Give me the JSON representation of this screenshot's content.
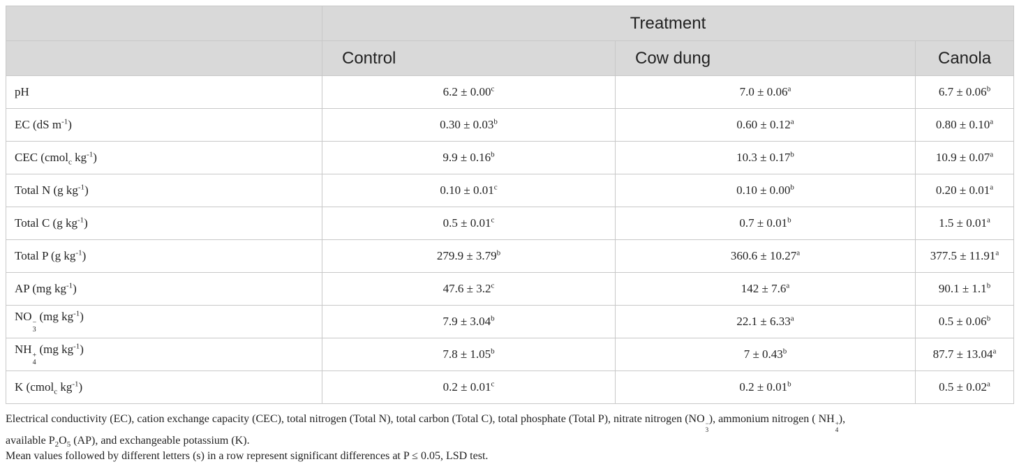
{
  "table": {
    "header": {
      "treatment": "Treatment",
      "control": "Control",
      "cowdung": "Cow dung",
      "canola": "Canola"
    },
    "rows": [
      {
        "label": "pH",
        "v": [
          {
            "val": "6.2 ± 0.00",
            "sig": "c"
          },
          {
            "val": "7.0 ± 0.06",
            "sig": "a"
          },
          {
            "val": "6.7 ± 0.06",
            "sig": "b"
          }
        ]
      },
      {
        "label_pre": "EC (",
        "label_unit": "dS m",
        "label_exp": "-1",
        "label_post": ")",
        "v": [
          {
            "val": "0.30 ± 0.03",
            "sig": "b"
          },
          {
            "val": "0.60 ± 0.12",
            "sig": "a"
          },
          {
            "val": "0.80 ± 0.10",
            "sig": "a"
          }
        ]
      },
      {
        "label_pre": "CEC (cmol",
        "label_sub": "c",
        "label_unit": " kg",
        "label_exp": "-1",
        "label_post": ")",
        "v": [
          {
            "val": "9.9 ± 0.16",
            "sig": "b"
          },
          {
            "val": "10.3 ± 0.17",
            "sig": "b"
          },
          {
            "val": "10.9 ± 0.07",
            "sig": "a"
          }
        ]
      },
      {
        "label_pre": "Total N (g kg",
        "label_exp": "-1",
        "label_post": ")",
        "v": [
          {
            "val": "0.10 ± 0.01",
            "sig": "c"
          },
          {
            "val": "0.10 ± 0.00",
            "sig": "b"
          },
          {
            "val": "0.20 ± 0.01",
            "sig": "a"
          }
        ]
      },
      {
        "label_pre": "Total C (g kg",
        "label_exp": "-1",
        "label_post": ")",
        "v": [
          {
            "val": "0.5 ± 0.01",
            "sig": "c"
          },
          {
            "val": "0.7 ± 0.01",
            "sig": "b"
          },
          {
            "val": "1.5 ± 0.01",
            "sig": "a"
          }
        ]
      },
      {
        "label_pre": "Total P (g kg",
        "label_exp": "-1",
        "label_post": ")",
        "v": [
          {
            "val": "279.9 ± 3.79",
            "sig": "b"
          },
          {
            "val": "360.6 ± 10.27",
            "sig": "a"
          },
          {
            "val": "377.5 ± 11.91",
            "sig": "a"
          }
        ]
      },
      {
        "label_pre": "AP (mg kg",
        "label_exp": "-1",
        "label_post": ")",
        "v": [
          {
            "val": "47.6 ± 3.2",
            "sig": "c"
          },
          {
            "val": "142 ± 7.6",
            "sig": "a"
          },
          {
            "val": "90.1 ± 1.1",
            "sig": "b"
          }
        ]
      },
      {
        "ion_base": "NO",
        "ion_sup": "−",
        "ion_sub": "3",
        "label_post": " (mg kg",
        "label_exp": "-1",
        "label_end": ")",
        "v": [
          {
            "val": "7.9 ± 3.04",
            "sig": "b"
          },
          {
            "val": "22.1 ± 6.33",
            "sig": "a"
          },
          {
            "val": "0.5 ± 0.06",
            "sig": "b"
          }
        ]
      },
      {
        "ion_base": "NH",
        "ion_sup": "+",
        "ion_sub": "4",
        "label_post": " (mg kg",
        "label_exp": "-1",
        "label_end": ")",
        "v": [
          {
            "val": "7.8 ± 1.05",
            "sig": "b"
          },
          {
            "val": "7 ± 0.43",
            "sig": "b"
          },
          {
            "val": "87.7 ± 13.04",
            "sig": "a"
          }
        ]
      },
      {
        "label_pre": "K (cmol",
        "label_sub": "c",
        "label_unit": " kg",
        "label_exp": "-1",
        "label_post": ")",
        "v": [
          {
            "val": "0.2 ± 0.01",
            "sig": "c"
          },
          {
            "val": "0.2 ± 0.01",
            "sig": "b"
          },
          {
            "val": "0.5 ± 0.02",
            "sig": "a"
          }
        ]
      }
    ]
  },
  "notes": {
    "line1_a": "Electrical conductivity (EC), cation exchange capacity (CEC), total nitrogen (Total N), total carbon (Total C), total phosphate (Total P), nitrate nitrogen (NO",
    "line1_b": "), ammonium nitrogen ( NH",
    "line1_c": "),",
    "line2_a": "available P",
    "line2_b": "O",
    "line2_c": " (AP), and exchangeable potassium (K).",
    "line3": "Mean values followed by different letters (s) in a row represent significant differences at P ≤ 0.05, LSD test."
  }
}
